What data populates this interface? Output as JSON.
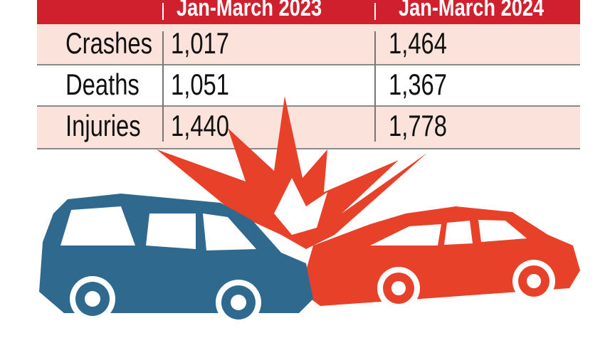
{
  "chart_data": {
    "type": "table",
    "columns": [
      "",
      "Jan-March 2023",
      "Jan-March 2024"
    ],
    "rows": [
      {
        "label": "Crashes",
        "values": [
          "1,017",
          "1,464"
        ]
      },
      {
        "label": "Deaths",
        "values": [
          "1,051",
          "1,367"
        ]
      },
      {
        "label": "Injuries",
        "values": [
          "1,440",
          "1,778"
        ]
      }
    ]
  },
  "colors": {
    "header": "#d0202e",
    "row_alt": "#fbe3dc",
    "blue_car": "#2f6a8e",
    "red_car": "#e8412a"
  }
}
